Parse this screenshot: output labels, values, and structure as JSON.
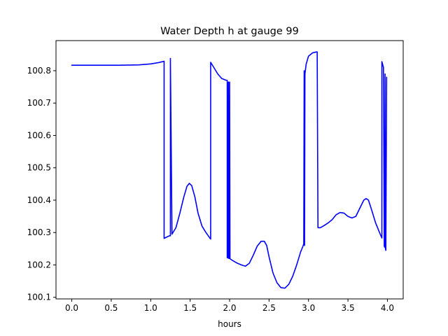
{
  "chart_data": {
    "type": "line",
    "title": "Water Depth h at gauge 99",
    "xlabel": "hours",
    "ylabel": "",
    "xlim": [
      -0.2,
      4.2
    ],
    "ylim": [
      100.095,
      100.893
    ],
    "x_ticks": [
      0.0,
      0.5,
      1.0,
      1.5,
      2.0,
      2.5,
      3.0,
      3.5,
      4.0
    ],
    "x_tick_labels": [
      "0.0",
      "0.5",
      "1.0",
      "1.5",
      "2.0",
      "2.5",
      "3.0",
      "3.5",
      "4.0"
    ],
    "y_ticks": [
      100.1,
      100.2,
      100.3,
      100.4,
      100.5,
      100.6,
      100.7,
      100.8
    ],
    "y_tick_labels": [
      "100.1",
      "100.2",
      "100.3",
      "100.4",
      "100.5",
      "100.6",
      "100.7",
      "100.8"
    ],
    "grid": false,
    "series": [
      {
        "color": "#0000ff",
        "x": [
          0.0,
          0.3,
          0.6,
          0.85,
          1.0,
          1.1,
          1.17,
          1.17,
          1.22,
          1.24,
          1.25,
          1.25,
          1.27,
          1.32,
          1.37,
          1.42,
          1.46,
          1.49,
          1.52,
          1.56,
          1.6,
          1.65,
          1.7,
          1.75,
          1.76,
          1.76,
          1.8,
          1.85,
          1.9,
          1.95,
          1.97,
          1.97,
          1.98,
          1.985,
          1.99,
          1.995,
          2.0,
          2.005,
          2.01,
          2.05,
          2.1,
          2.15,
          2.2,
          2.25,
          2.3,
          2.35,
          2.4,
          2.44,
          2.47,
          2.5,
          2.55,
          2.6,
          2.65,
          2.7,
          2.75,
          2.8,
          2.85,
          2.9,
          2.93,
          2.94,
          2.945,
          2.95,
          2.955,
          2.96,
          2.97,
          3.0,
          3.05,
          3.1,
          3.11,
          3.12,
          3.15,
          3.2,
          3.25,
          3.3,
          3.35,
          3.4,
          3.45,
          3.5,
          3.55,
          3.6,
          3.65,
          3.7,
          3.73,
          3.76,
          3.8,
          3.85,
          3.9,
          3.93,
          3.93,
          3.95,
          3.96,
          3.965,
          3.97,
          3.975,
          3.98,
          3.99
        ],
        "y": [
          100.817,
          100.817,
          100.817,
          100.818,
          100.821,
          100.825,
          100.829,
          100.282,
          100.288,
          100.29,
          100.29,
          100.838,
          100.295,
          100.315,
          100.36,
          100.41,
          100.443,
          100.452,
          100.445,
          100.41,
          100.36,
          100.32,
          100.3,
          100.283,
          100.28,
          100.826,
          100.81,
          100.79,
          100.776,
          100.771,
          100.77,
          100.222,
          100.222,
          100.765,
          100.22,
          100.22,
          100.765,
          100.22,
          100.218,
          100.212,
          100.205,
          100.2,
          100.196,
          100.205,
          100.23,
          100.258,
          100.273,
          100.273,
          100.26,
          100.225,
          100.175,
          100.145,
          100.13,
          100.128,
          100.14,
          100.165,
          100.2,
          100.24,
          100.258,
          100.265,
          100.8,
          100.26,
          100.79,
          100.8,
          100.82,
          100.845,
          100.855,
          100.858,
          100.858,
          100.315,
          100.315,
          100.322,
          100.33,
          100.34,
          100.355,
          100.362,
          100.36,
          100.35,
          100.345,
          100.35,
          100.375,
          100.4,
          100.405,
          100.4,
          100.37,
          100.33,
          100.3,
          100.283,
          100.828,
          100.81,
          100.258,
          100.255,
          100.79,
          100.25,
          100.245,
          100.78
        ]
      }
    ]
  }
}
